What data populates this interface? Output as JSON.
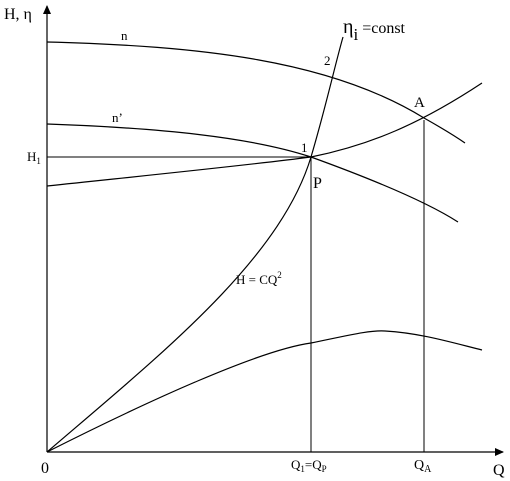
{
  "diagram": {
    "axes": {
      "y_label": "H, η",
      "x_label": "Q",
      "origin_label": "0"
    },
    "ticks": {
      "h1_label": "H",
      "h1_sub": "1",
      "q1_label": "Q",
      "q1_sub": "1",
      "q1_eq": "=Q",
      "q1_sub2": "P",
      "qa_label": "Q",
      "qa_sub": "A"
    },
    "curve_labels": {
      "n": "n",
      "n_prime": "n’",
      "eta_main": "η",
      "eta_sub": "i",
      "eta_rest": " =const",
      "parabola_main": "H = CQ",
      "parabola_sup": "2"
    },
    "points": {
      "p1": "1",
      "p2": "2",
      "pA": "A",
      "pP": "P"
    },
    "colors": {
      "stroke": "#000000",
      "background": "#ffffff"
    }
  }
}
